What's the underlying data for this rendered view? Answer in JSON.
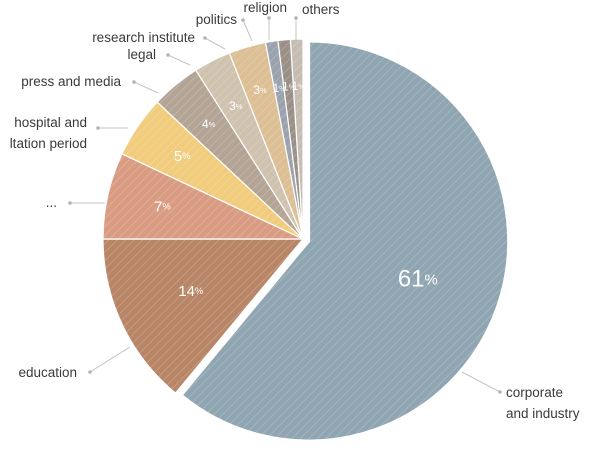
{
  "chart_data": {
    "type": "pie",
    "title": "",
    "colors": {
      "corporate_and_industry": "#8fa5b1",
      "education": "#b88566",
      "ellipsis": "#d99c82",
      "hospital_and_ltation_period": "#f0cc7c",
      "press_and_media": "#b3a495",
      "legal": "#cfc2ae",
      "research_institute": "#dcbf94",
      "politics": "#99a2ad",
      "religion": "#9a9088",
      "others": "#c6bcb2"
    },
    "slices": [
      {
        "key": "corporate_and_industry",
        "label_lines": [
          "corporate",
          "and industry"
        ],
        "value": 61,
        "pct_number": "61",
        "pct_sign": "%"
      },
      {
        "key": "education",
        "label_lines": [
          "education"
        ],
        "value": 14,
        "pct_number": "14",
        "pct_sign": "%"
      },
      {
        "key": "ellipsis",
        "label_lines": [
          "..."
        ],
        "value": 7,
        "pct_number": "7",
        "pct_sign": "%"
      },
      {
        "key": "hospital_and_ltation_period",
        "label_lines": [
          "hospital and",
          "ltation period"
        ],
        "value": 5,
        "pct_number": "5",
        "pct_sign": "%"
      },
      {
        "key": "press_and_media",
        "label_lines": [
          "press and media"
        ],
        "value": 4,
        "pct_number": "4",
        "pct_sign": "%"
      },
      {
        "key": "legal",
        "label_lines": [
          "legal"
        ],
        "value": 3,
        "pct_number": "3",
        "pct_sign": "%"
      },
      {
        "key": "research_institute",
        "label_lines": [
          "research institute"
        ],
        "value": 3,
        "pct_number": "3",
        "pct_sign": "%"
      },
      {
        "key": "politics",
        "label_lines": [
          "politics"
        ],
        "value": 1,
        "pct_number": "1",
        "pct_sign": "%"
      },
      {
        "key": "religion",
        "label_lines": [
          "religion"
        ],
        "value": 1,
        "pct_number": "1",
        "pct_sign": "%"
      },
      {
        "key": "others",
        "label_lines": [
          "others"
        ],
        "value": 1,
        "pct_number": "1",
        "pct_sign": "%"
      }
    ]
  }
}
